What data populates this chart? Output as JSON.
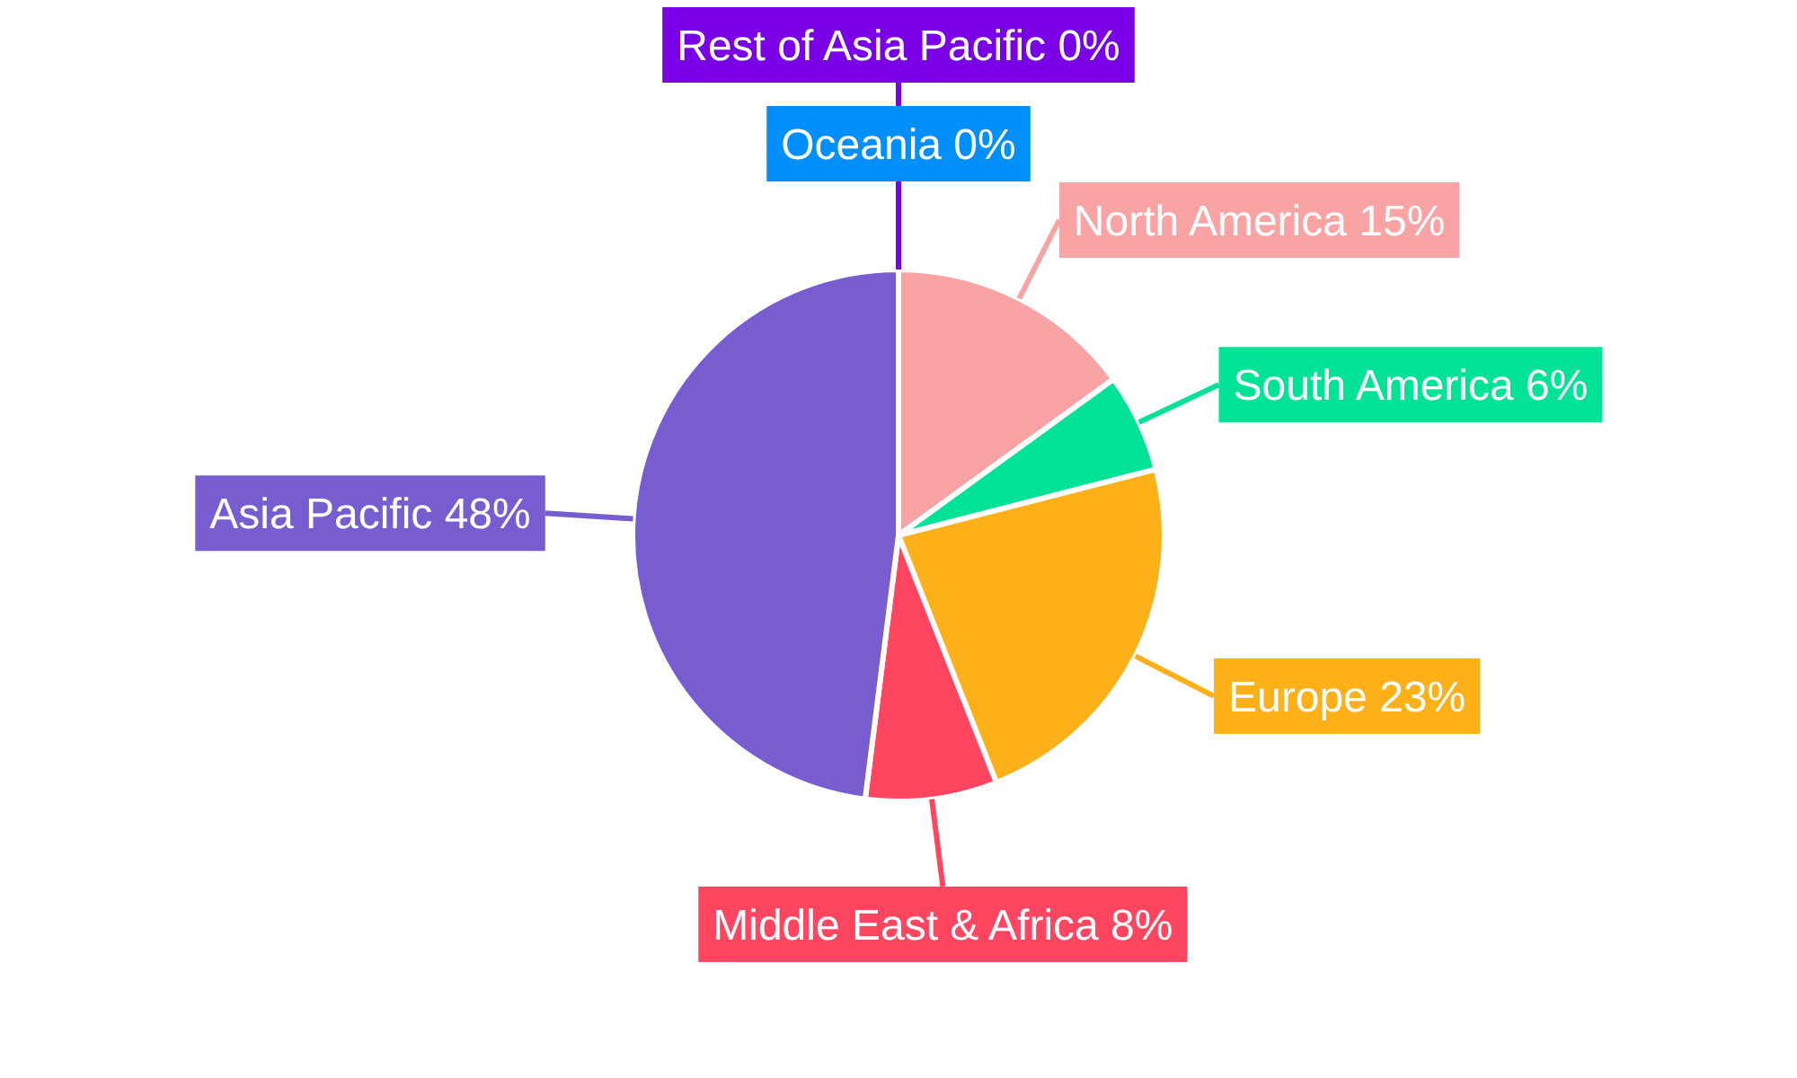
{
  "chart_data": {
    "type": "pie",
    "categories": [
      "North America",
      "South America",
      "Europe",
      "Middle East & Africa",
      "Asia Pacific",
      "Oceania",
      "Rest of Asia Pacific"
    ],
    "values": [
      15,
      6,
      23,
      8,
      48,
      0,
      0
    ],
    "colors": [
      "#f9a3a4",
      "#00e396",
      "#feb019",
      "#ff4560",
      "#775dd0",
      "#008ffb",
      "#7a00e6"
    ],
    "value_labels": [
      "15%",
      "6%",
      "23%",
      "8%",
      "48%",
      "0%",
      "0%"
    ]
  }
}
